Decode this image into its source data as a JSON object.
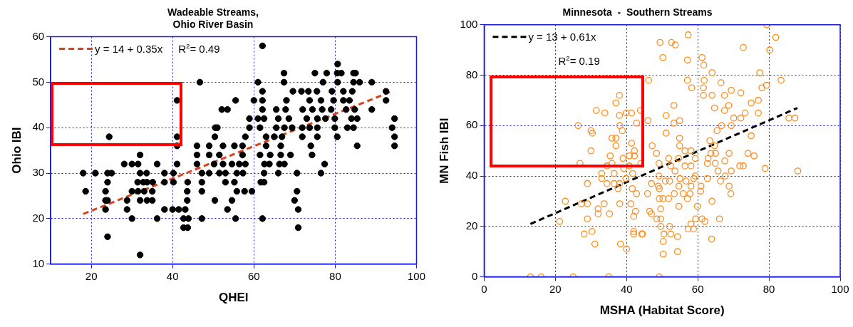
{
  "chart_data": [
    {
      "type": "scatter",
      "title": "Wadeable Streams,\nOhio River Basin",
      "xlabel": "QHEI",
      "ylabel": "Ohio IBI",
      "xlim": [
        10,
        100
      ],
      "ylim": [
        10,
        60
      ],
      "xticks": [
        20,
        40,
        60,
        80,
        100
      ],
      "yticks": [
        10,
        20,
        30,
        40,
        50,
        60
      ],
      "grid": true,
      "legend": "top left",
      "annotations": [
        "R$^{2}$= 0.49"
      ],
      "series": [
        {
          "type": "scatter",
          "marker": "circle",
          "color": "#000000",
          "x": [
            62.1,
            80.6,
            67.4,
            75,
            77.9,
            80.5,
            81.5,
            84.5,
            85,
            46.7,
            61,
            67.4,
            77,
            80.6,
            84.5,
            86,
            89,
            62.1,
            69.6,
            71.7,
            73.4,
            75.5,
            79.2,
            82,
            84.2,
            92.5,
            41.1,
            55.5,
            60,
            62.1,
            68,
            73.7,
            76.5,
            79.6,
            82,
            83.5,
            92.5,
            52.1,
            53.5,
            62.1,
            65.5,
            67.8,
            72,
            74.4,
            76.8,
            79,
            82.7,
            84.8,
            89,
            58.9,
            61,
            62.5,
            66,
            68.6,
            73,
            75.6,
            77.6,
            79.9,
            84,
            85.4,
            94.6,
            50.5,
            51,
            58.9,
            61.5,
            65.5,
            67.5,
            69.4,
            71.9,
            73.7,
            75.6,
            79.9,
            83,
            84.5,
            94,
            24.4,
            41.1,
            50.4,
            57.9,
            63,
            65,
            66.9,
            71.9,
            75.6,
            80.5,
            94.6,
            41.1,
            46,
            49,
            52.4,
            55.2,
            57.2,
            63,
            66.6,
            74,
            85.4,
            94.6,
            32,
            46,
            49,
            51.5,
            57.2,
            61.5,
            64,
            66.6,
            69,
            74.3,
            28.1,
            30,
            31.5,
            36.2,
            41.1,
            46,
            50.2,
            52.4,
            54.6,
            56.4,
            57.9,
            62.6,
            63.8,
            66.3,
            67.5,
            77.4,
            18,
            21,
            24,
            25,
            32,
            33.6,
            38,
            40.2,
            47.2,
            49,
            51.5,
            53,
            55.8,
            57.3,
            62.5,
            66,
            70.6,
            76.5,
            24,
            31.4,
            32.8,
            33.7,
            35.1,
            38,
            40.2,
            43.7,
            47.2,
            53,
            55.2,
            61.7,
            62.5,
            18.6,
            23.5,
            30,
            31.5,
            33,
            35,
            43.6,
            47.2,
            55.8,
            57.7,
            59.5,
            70.6,
            23.5,
            24,
            28.8,
            32,
            33.7,
            35,
            43.6,
            50.4,
            54.6,
            70,
            23.5,
            28.8,
            38,
            40,
            41.5,
            43.1,
            53.5,
            70.9,
            30,
            36.2,
            42.7,
            43.9,
            47.2,
            55.5,
            62.1,
            42.7,
            43.7,
            70.9,
            24,
            32
          ],
          "values": [
            58,
            54,
            52,
            52,
            52,
            52,
            52,
            52,
            52,
            50,
            50,
            50,
            50,
            50,
            50,
            50,
            50,
            48,
            48,
            48,
            48,
            48,
            48,
            48,
            48,
            48,
            46,
            46,
            46,
            46,
            46,
            46,
            46,
            46,
            46,
            46,
            46,
            44,
            44,
            44,
            44,
            44,
            44,
            44,
            44,
            44,
            44,
            44,
            44,
            42,
            42,
            42,
            42,
            42,
            42,
            42,
            42,
            42,
            42,
            42,
            42,
            40,
            40,
            40,
            40,
            40,
            40,
            40,
            40,
            40,
            40,
            40,
            40,
            40,
            40,
            38,
            38,
            38,
            38,
            38,
            38,
            38,
            38,
            38,
            38,
            38,
            36,
            36,
            36,
            36,
            36,
            36,
            36,
            36,
            36,
            36,
            36,
            34,
            34,
            34,
            34,
            34,
            34,
            34,
            34,
            34,
            34,
            32,
            32,
            32,
            32,
            32,
            32,
            32,
            32,
            32,
            32,
            32,
            32,
            32,
            32,
            32,
            32,
            30,
            30,
            30,
            30,
            30,
            30,
            30,
            30,
            30,
            30,
            30,
            30,
            30,
            30,
            30,
            30,
            30,
            30,
            28,
            28,
            28,
            28,
            28,
            28,
            28,
            28,
            28,
            28,
            28,
            28,
            28,
            26,
            26,
            26,
            26,
            26,
            26,
            26,
            26,
            26,
            26,
            26,
            26,
            24,
            24,
            24,
            24,
            24,
            24,
            24,
            24,
            24,
            24,
            22,
            22,
            22,
            22,
            22,
            22,
            22,
            22,
            20,
            20,
            20,
            20,
            20,
            20,
            20,
            18,
            18,
            18,
            16,
            12
          ]
        },
        {
          "type": "line",
          "marker": "none",
          "name": "y = 14 + 0.35x",
          "color": "#d9411e",
          "line_style": "dashed",
          "x": [
            18,
            94
          ],
          "values": [
            21,
            48
          ]
        }
      ]
    },
    {
      "type": "scatter",
      "title": "Minnesota  -  Southern Streams",
      "xlabel": "MSHA (Habitat Score)",
      "ylabel": "MN Fish IBI",
      "xlim": [
        0,
        100
      ],
      "ylim": [
        0,
        100
      ],
      "xticks": [
        0,
        20,
        40,
        60,
        80,
        100
      ],
      "yticks": [
        0,
        20,
        40,
        60,
        80,
        100
      ],
      "grid": true,
      "legend": "top left",
      "annotations": [
        "R$^{2}$= 0.19"
      ],
      "series": [
        {
          "type": "scatter",
          "marker": "circle",
          "color": "#ff8c1a",
          "x": [
            38,
            37,
            31.5,
            33.9,
            39.9,
            41.4,
            43.9,
            38,
            42.8,
            26.4,
            38.1,
            38.8,
            30,
            30.4,
            35.9,
            37,
            37,
            41.4,
            42.2,
            30,
            35.4,
            39,
            40.8,
            42.2,
            26.9,
            35.9,
            34.5,
            39.2,
            40.8,
            44,
            33,
            36.5,
            41.7,
            33,
            34.5,
            36.5,
            38,
            39.8,
            37.6,
            29,
            41.6,
            42.8,
            22.8,
            27.3,
            29,
            33.7,
            38.1,
            41.2,
            32,
            32,
            35.2,
            42.5,
            42,
            21.2,
            29,
            28.1,
            30.3,
            42,
            42,
            44.3,
            31.1,
            38.3,
            40,
            13,
            16,
            25,
            35,
            79.4,
            81.9,
            57.3,
            49.4,
            52.6,
            53.7,
            72.8,
            80.2,
            61.2,
            61.7,
            50.2,
            57.1,
            64,
            77.4,
            46.2,
            57.1,
            61.8,
            83.4,
            66.5,
            58.3,
            61.6,
            79.3,
            78,
            61.6,
            64,
            67.5,
            69.4,
            72.1,
            77,
            75,
            53.3,
            68.7,
            64.7,
            67.5,
            51.1,
            73.3,
            77,
            70.1,
            72.1,
            85.6,
            87.3,
            53.3,
            54.9,
            46,
            69.4,
            66.7,
            65.4,
            51.1,
            75,
            54.9,
            63.4,
            54.9,
            64.7,
            47.2,
            56.4,
            58.1,
            63.7,
            65,
            74.1,
            75.8,
            68.8,
            54.6,
            59.3,
            62.9,
            51.8,
            48.4,
            49.1,
            52.4,
            56.4,
            58.1,
            62.7,
            64.9,
            67.6,
            71.8,
            72.8,
            78.9,
            88.1,
            65.7,
            69.4,
            53.6,
            49.1,
            59.3,
            62.7,
            67.7,
            47,
            48.9,
            50.9,
            52.1,
            55,
            56.7,
            58.9,
            66.4,
            54.7,
            58.1,
            60.9,
            60.8,
            68.8,
            69.3,
            45.9,
            49.2,
            49.2,
            50.2,
            51.8,
            53.4,
            55.9,
            57.1,
            57.8,
            64,
            54.7,
            49.6,
            46.5,
            47,
            48.5,
            49.6,
            52.1,
            49.6,
            58.1,
            59.4,
            61.2,
            62,
            66.1,
            57.3,
            58.8,
            52.4,
            50.5,
            44.5,
            54.3,
            63.9,
            50.3,
            54.3,
            50.3,
            49.2,
            59.9
          ],
          "values": [
            72,
            69,
            66,
            65,
            65,
            65,
            66,
            64,
            61,
            60,
            60,
            58,
            58,
            57,
            55,
            55,
            52,
            53,
            50,
            50,
            48,
            47,
            48,
            48,
            45,
            45,
            44,
            43,
            44,
            45,
            41,
            41,
            41,
            39,
            37,
            37,
            37,
            39,
            35,
            37,
            35,
            33,
            30,
            29,
            29,
            29,
            29,
            29,
            27,
            25,
            25,
            26,
            24,
            22,
            23,
            17,
            18,
            18,
            17,
            17,
            13,
            13,
            11,
            0,
            0,
            0,
            0,
            100,
            95,
            96,
            93,
            93,
            92,
            91,
            90,
            87,
            84,
            87,
            86,
            81,
            81,
            78,
            78,
            78,
            78,
            77,
            75,
            75,
            76,
            75,
            72,
            72,
            72,
            74,
            73,
            70,
            69,
            68,
            68,
            67,
            66,
            64,
            65,
            65,
            63,
            63,
            63,
            63,
            61,
            62,
            62,
            60,
            60,
            58,
            57,
            56,
            55,
            54,
            52,
            52,
            52,
            50,
            50,
            49,
            49,
            49,
            48,
            49,
            47,
            47,
            47,
            47,
            49,
            45,
            44,
            44,
            44,
            45,
            45,
            46,
            44,
            44,
            43,
            42,
            42,
            42,
            42,
            40,
            40,
            39,
            40,
            37,
            36,
            38,
            38,
            39,
            38,
            39,
            38,
            36,
            36,
            36,
            34,
            36,
            33,
            33,
            35,
            31,
            31,
            31,
            33,
            33,
            31,
            33,
            30,
            28,
            27,
            26,
            25,
            23,
            23,
            20,
            20,
            21,
            23,
            23,
            22,
            23,
            19,
            19,
            17,
            17,
            17,
            16,
            15,
            14,
            10,
            9,
            0,
            28
          ]
        },
        {
          "type": "line",
          "marker": "none",
          "name": "y = 13 + 0.61x",
          "color": "#000000",
          "line_style": "dashed",
          "x": [
            13,
            88
          ],
          "values": [
            21,
            67
          ]
        }
      ]
    }
  ]
}
